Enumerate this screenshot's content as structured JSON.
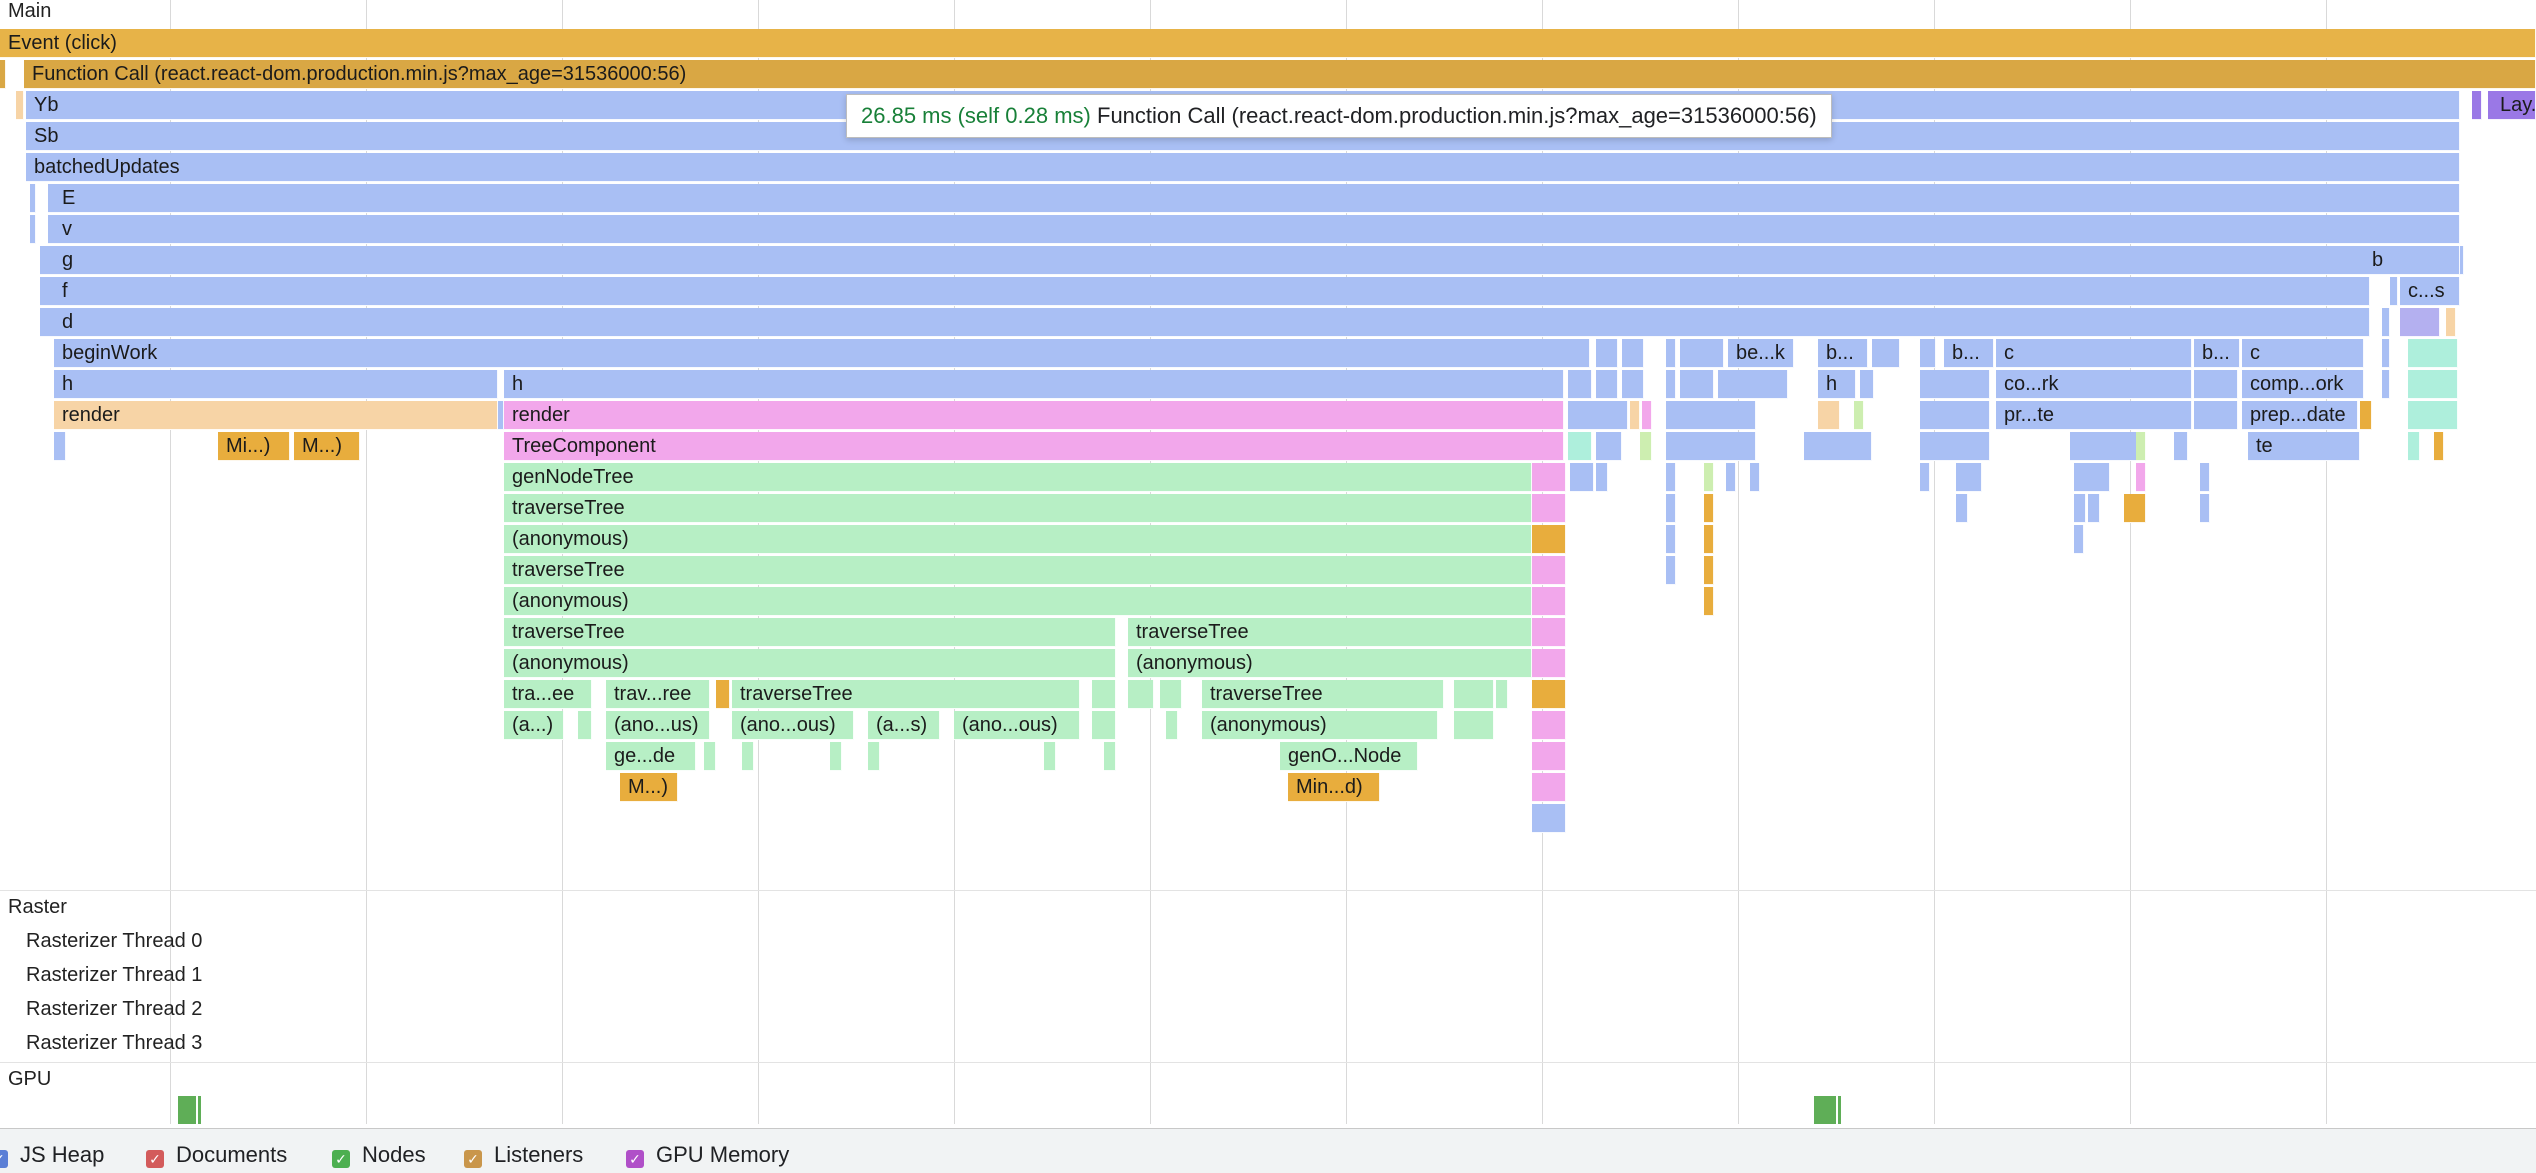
{
  "sections": {
    "main": "Main",
    "raster": "Raster",
    "gpu": "GPU"
  },
  "raster_threads": [
    "Rasterizer Thread 0",
    "Rasterizer Thread 1",
    "Rasterizer Thread 2",
    "Rasterizer Thread 3"
  ],
  "tooltip": {
    "duration": "26.85 ms (self 0.28 ms)",
    "name": "Function Call (react.react-dom.production.min.js?max_age=31536000:56)"
  },
  "flame": {
    "event": "Event (click)",
    "function_call": "Function Call (react.react-dom.production.min.js?max_age=31536000:56)",
    "yb": "Yb",
    "layout": "Lay...",
    "sb": "Sb",
    "batched_updates": "batchedUpdates",
    "e": "E",
    "v": "v",
    "g": "g",
    "g_right": "b",
    "f": "f",
    "f_right": "c...s",
    "d": "d",
    "begin_work": "beginWork",
    "begin_work_r1": "be...k",
    "begin_work_r2": "b...",
    "begin_work_r3": "b...",
    "begin_work_r4": "c",
    "begin_work_r5": "b...",
    "begin_work_r6": "c",
    "h_left": "h",
    "h_mid": "h",
    "h_r1": "h",
    "h_r2": "co...rk",
    "h_r3": "comp...ork",
    "render_left": "render",
    "render_mid": "render",
    "render_r1": "pr...te",
    "render_r2": "prep...date",
    "mi_left1": "Mi...)",
    "mi_left2": "M...)",
    "tree_component": "TreeComponent",
    "tree_right": "te",
    "gen_node_tree": "genNodeTree",
    "traverse_1": "traverseTree",
    "anon_1": "(anonymous)",
    "traverse_2": "traverseTree",
    "anon_2": "(anonymous)",
    "traverse_3a": "traverseTree",
    "traverse_3b": "traverseTree",
    "anon_3a": "(anonymous)",
    "anon_3b": "(anonymous)",
    "d12_a": "tra...ee",
    "d12_b": "trav...ree",
    "d12_c": "traverseTree",
    "d12_d": "traverseTree",
    "d13_a": "(a...)",
    "d13_b": "(ano...us)",
    "d13_c": "(ano...ous)",
    "d13_d": "(a...s)",
    "d13_e": "(ano...ous)",
    "d13_f": "(anonymous)",
    "d14_a": "ge...de",
    "d14_b": "genO...Node",
    "d15_a": "M...)",
    "d15_b": "Min...d)"
  },
  "legend": [
    {
      "label": "JS Heap",
      "color": "#5b7fd6",
      "checked": true
    },
    {
      "label": "Documents",
      "color": "#d35b5b",
      "checked": true
    },
    {
      "label": "Nodes",
      "color": "#4caf50",
      "checked": true
    },
    {
      "label": "Listeners",
      "color": "#c9964b",
      "checked": true
    },
    {
      "label": "GPU Memory",
      "color": "#b04fc8",
      "checked": true
    }
  ]
}
